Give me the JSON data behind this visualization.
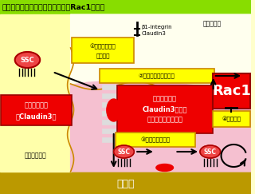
{
  "title": "精子幹細胞のホーミングにおけるRac1の役割",
  "title_bg": "#88dd00",
  "bg_main": "#ffffcc",
  "bg_bottom_bar": "#bb9900",
  "pink_region": "#f5c0d0",
  "sertoli_left_bg": "#ffffaa",
  "ssc_fill": "#ee4444",
  "ssc_edge": "#aa0000",
  "red_fill": "#ee0000",
  "red_edge": "#990000",
  "yellow_fill": "#ffff00",
  "yellow_edge": "#cc8800",
  "barrier_fill": "#dddddd",
  "barrier_edge": "#999999",
  "arrow_color": "#000000",
  "white": "#ffffff",
  "black": "#000000",
  "label_kido": "基底膜",
  "label_sertoli1": "セルトリ細胞",
  "label_sertoli2": "セルトリ細胞",
  "label_tubule": "精細管内腔",
  "label_blood_box1": "血液精巣関門",
  "label_blood_box2": "（Claudin3）",
  "label_rac1": "Rac1",
  "label_claudin_1": "精子幹細胞の",
  "label_claudin_2": "Claudin3発現を",
  "label_claudin_3": "誘導し、通過させる",
  "step1_1": "①セルトリ細胞",
  "step1_2": "への接着",
  "step2": "②血液精巣関門の通過",
  "step3": "③基底膜への接着",
  "step4": "④自己複製",
  "beta_integrin": "β1-integrin",
  "claudin3_label": "Claudin3",
  "ssc_label": "SSC"
}
